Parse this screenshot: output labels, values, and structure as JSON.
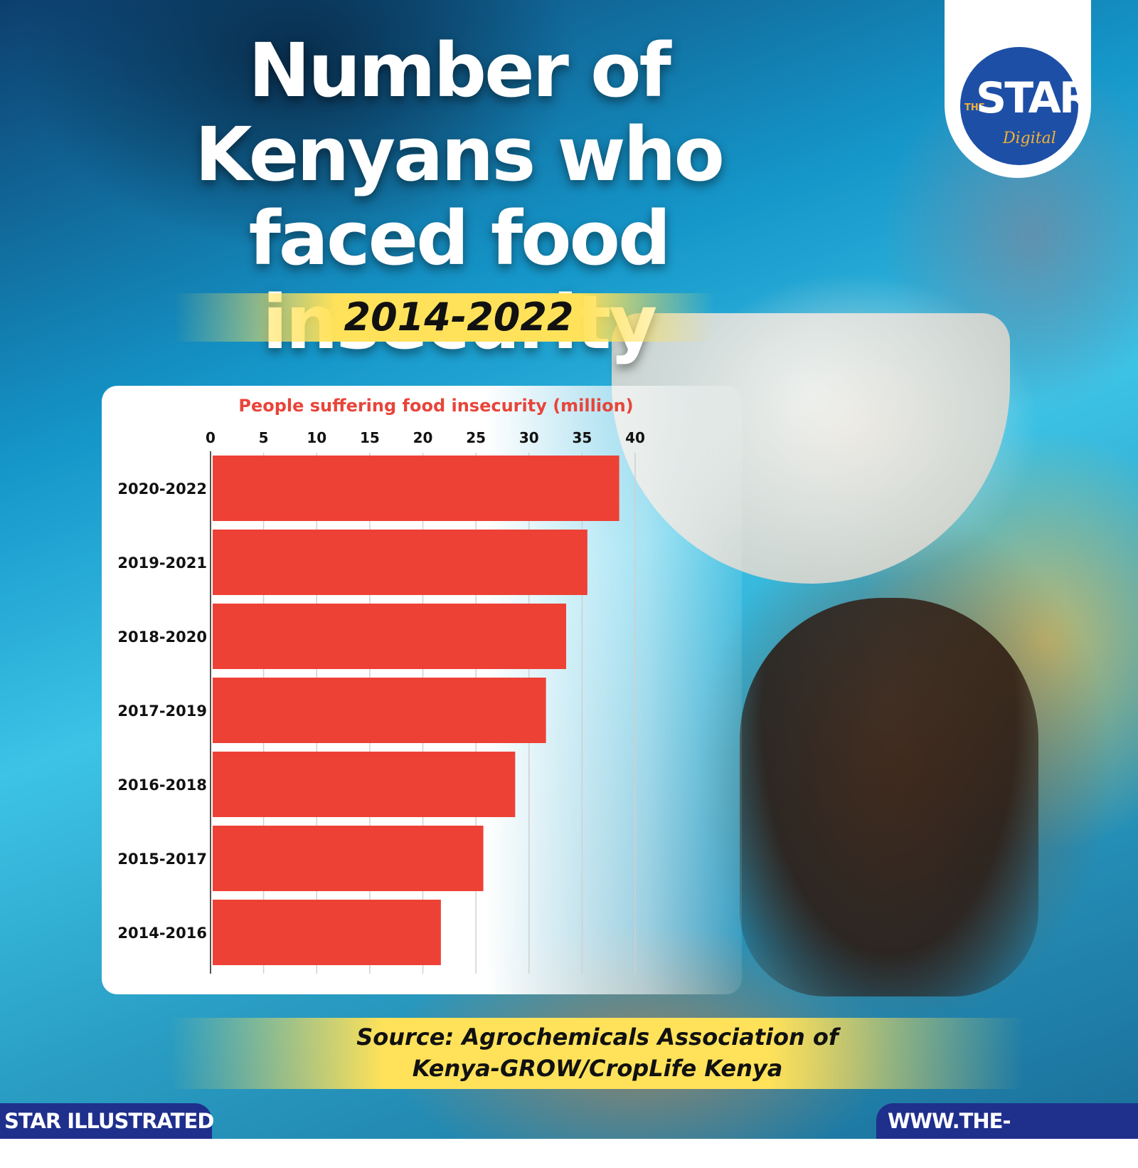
{
  "title": "Number of Kenyans who faced food insecurity",
  "subtitle": "2014-2022",
  "logo": {
    "small_text": "THE",
    "main_text": "STAR",
    "sub_text": "Digital"
  },
  "source_line_1": "Source: Agrochemicals Association of",
  "source_line_2": "Kenya-GROW/CropLife Kenya",
  "footer": {
    "left": "STAR ILLUSTRATED",
    "right": "WWW.THE-STAR.CO.KE"
  },
  "colors": {
    "bar": "#ee4136",
    "accent_yellow": "#ffe25a",
    "footer_navy": "#1f2f8c",
    "logo_blue": "#1e4fa6"
  },
  "chart_data": {
    "type": "bar",
    "orientation": "horizontal",
    "title": "People suffering food insecurity (million)",
    "xlabel": "",
    "ylabel": "",
    "categories": [
      "2020-2022",
      "2019-2021",
      "2018-2020",
      "2017-2019",
      "2016-2018",
      "2015-2017",
      "2014-2016"
    ],
    "values": [
      38.5,
      35.5,
      33.5,
      31.6,
      28.7,
      25.7,
      21.7
    ],
    "xlim": [
      0,
      40
    ],
    "ticks": [
      0,
      5,
      10,
      15,
      20,
      25,
      30,
      35,
      40
    ],
    "grid": true,
    "legend": "none"
  }
}
